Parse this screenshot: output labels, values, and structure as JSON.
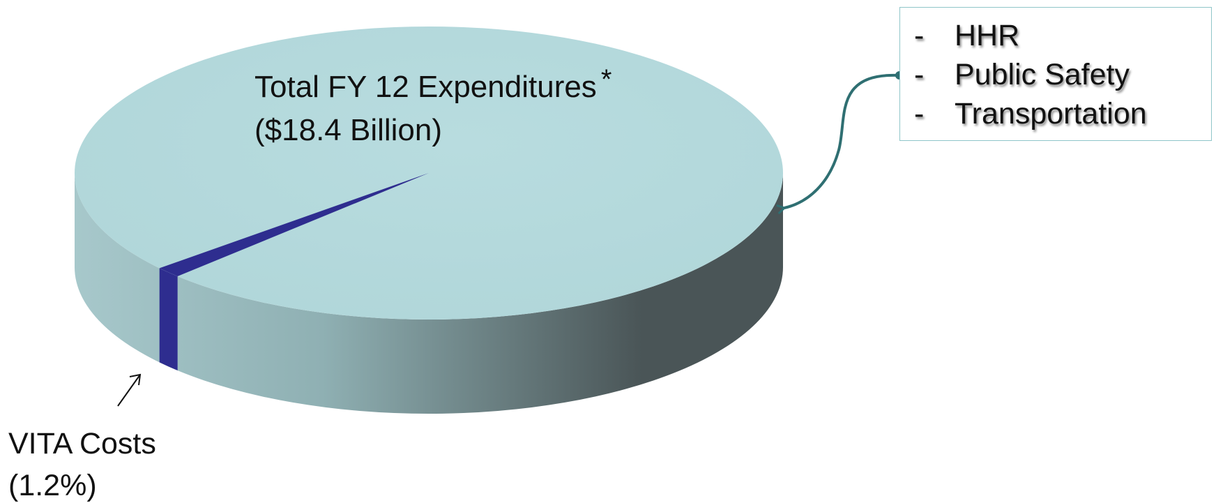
{
  "chart_data": {
    "type": "pie",
    "title": "Total FY 12 Expenditures",
    "title_marker": "*",
    "subtitle": "($18.4 Billion)",
    "slices": [
      {
        "label": "VITA Costs",
        "value": 1.2,
        "display": "(1.2%)",
        "color": "#2e2d8f"
      },
      {
        "value": 98.8,
        "color": "#b8dcdf"
      }
    ],
    "style": "3d",
    "callout_list": [
      "HHR",
      "Public Safety",
      "Transportation"
    ],
    "colors": {
      "pie_top": "#b8dcdf",
      "pie_side_light": "#a7c8cb",
      "pie_side_dark": "#4a5557",
      "vita_slice": "#2e2d8f",
      "callout_border": "#8fc6c9",
      "connector": "#2f6f72"
    }
  }
}
